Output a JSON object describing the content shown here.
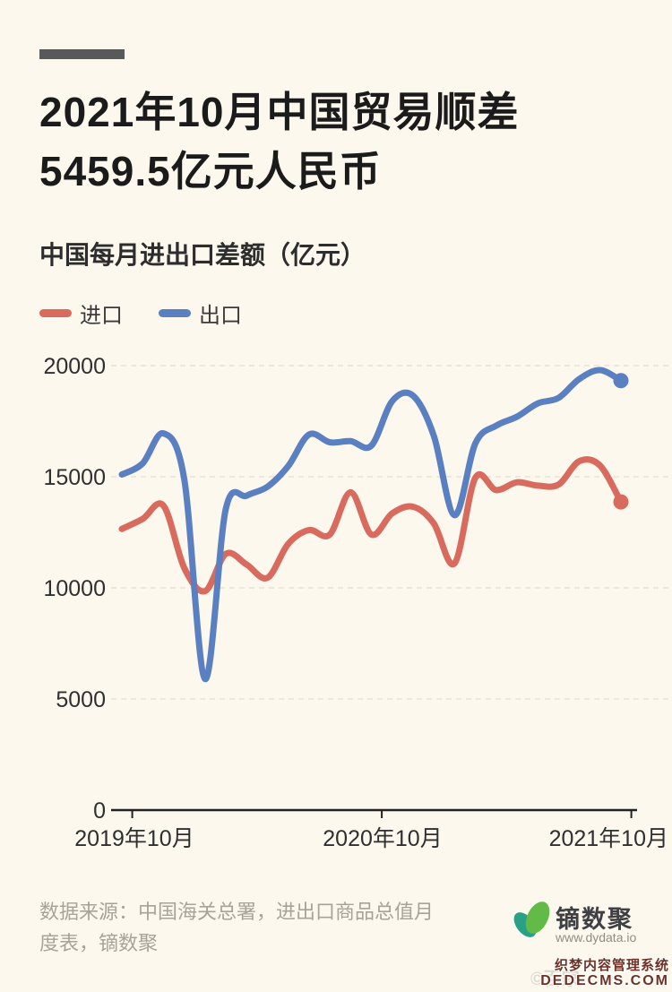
{
  "page": {
    "background": "#fcf8ee",
    "accent_bar_color": "#58595b"
  },
  "header": {
    "title_line1": "2021年10月中国贸易顺差",
    "title_line2": "5459.5亿元人民币",
    "subtitle": "中国每月进出口差额（亿元）"
  },
  "legend": {
    "items": [
      {
        "label": "进口",
        "color": "#d96b5e"
      },
      {
        "label": "出口",
        "color": "#5b80c1"
      }
    ]
  },
  "chart_data": {
    "type": "line",
    "title": "中国每月进出口差额（亿元）",
    "smooth": true,
    "grid": "horizontal dashed",
    "legend_position": "top-left",
    "end_point_dot": true,
    "ylim": [
      0,
      20000
    ],
    "yticks": [
      0,
      5000,
      10000,
      15000,
      20000
    ],
    "x": [
      "2019-10",
      "2019-11",
      "2019-12",
      "2020-01",
      "2020-02",
      "2020-03",
      "2020-04",
      "2020-05",
      "2020-06",
      "2020-07",
      "2020-08",
      "2020-09",
      "2020-10",
      "2020-11",
      "2020-12",
      "2021-01",
      "2021-02",
      "2021-03",
      "2021-04",
      "2021-05",
      "2021-06",
      "2021-07",
      "2021-08",
      "2021-09",
      "2021-10"
    ],
    "x_tick_labels": [
      "2019年10月",
      "2020年10月",
      "2021年10月"
    ],
    "series": [
      {
        "name": "进口",
        "color": "#d96b5e",
        "values": [
          12650,
          13100,
          13700,
          10900,
          9850,
          11530,
          11050,
          10450,
          11980,
          12600,
          12400,
          14300,
          12400,
          13350,
          13650,
          12900,
          11100,
          14950,
          14400,
          14750,
          14600,
          14650,
          15700,
          15500,
          13866.4
        ]
      },
      {
        "name": "出口",
        "color": "#5b80c1",
        "values": [
          15100,
          15600,
          16950,
          14900,
          5900,
          13550,
          14150,
          14550,
          15480,
          16900,
          16550,
          16600,
          16400,
          18400,
          18650,
          16850,
          13270,
          16500,
          17300,
          17700,
          18300,
          18550,
          19400,
          19800,
          19325.9
        ]
      }
    ],
    "axis_color": "#222222",
    "gridline_color": "#e7e2d5",
    "tick_label_color": "#2f2f2f"
  },
  "footer": {
    "source_line1": "数据来源：中国海关总署，进出口商品总值月",
    "source_line2": "度表，镝数聚",
    "brand_name": "镝数聚",
    "brand_url": "www.dydata.io",
    "leaf_dark": "#2aa086",
    "leaf_light": "#63bb47"
  },
  "watermark": {
    "copy": "©百家",
    "line1": "织梦内容管理系统",
    "line2": "DEDECMS.COM"
  }
}
